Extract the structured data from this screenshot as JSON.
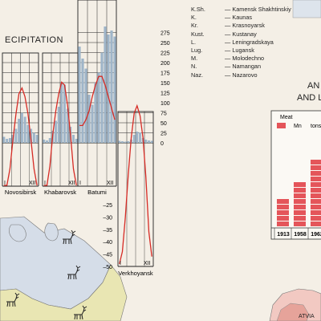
{
  "precip_title": "ECIPITATION",
  "scale_ticks": [
    "275",
    "250",
    "225",
    "200",
    "175",
    "150",
    "125",
    "100",
    "75",
    "50",
    "25",
    "0"
  ],
  "neg_ticks": [
    "–25",
    "–30",
    "–35",
    "–40",
    "–45",
    "–50"
  ],
  "months": {
    "start": "I",
    "end": "XII"
  },
  "stations": [
    {
      "name": "Novosibirsk",
      "start": "I",
      "end": "XII",
      "precip": [
        15,
        10,
        12,
        20,
        35,
        60,
        75,
        65,
        45,
        35,
        25,
        20
      ]
    },
    {
      "name": "Khabarovsk",
      "start": "I",
      "end": "XII",
      "precip": [
        8,
        6,
        12,
        30,
        55,
        90,
        150,
        145,
        85,
        40,
        20,
        10
      ]
    },
    {
      "name": "Batumi",
      "start": "I",
      "end": "XII",
      "precip": [
        240,
        210,
        185,
        120,
        95,
        150,
        175,
        225,
        290,
        270,
        280,
        265
      ]
    },
    {
      "name": "Verkhoyansk",
      "start": "I",
      "end": "XII",
      "precip": [
        5,
        4,
        3,
        4,
        8,
        20,
        28,
        26,
        12,
        8,
        6,
        5
      ]
    }
  ],
  "abbreviations": [
    {
      "abbr": "K.Sh.",
      "name": "Kamensk Shakhtinskiy"
    },
    {
      "abbr": "K.",
      "name": "Kaunas"
    },
    {
      "abbr": "Kr.",
      "name": "Krasnoyarsk"
    },
    {
      "abbr": "Kust.",
      "name": "Kustanay"
    },
    {
      "abbr": "L.",
      "name": "Leningradskaya"
    },
    {
      "abbr": "Lug.",
      "name": "Lugansk"
    },
    {
      "abbr": "M.",
      "name": "Molodechno"
    },
    {
      "abbr": "N.",
      "name": "Namangan"
    },
    {
      "abbr": "Naz.",
      "name": "Nazarovo"
    }
  ],
  "section2_title_1": "AN",
  "section2_title_2": "AND L",
  "meat": {
    "title": "Meat",
    "unit": "Mn",
    "unit2": "tons",
    "years": [
      "1913",
      "1958",
      "1962"
    ],
    "blocks": [
      5,
      8,
      12
    ]
  },
  "latvia": "ATVIA",
  "colors": {
    "bars": "#9fb5c9",
    "curve": "#d62b25",
    "grid": "#222",
    "land_green": "#e9e6b3",
    "land_blue": "#d5dde8",
    "meat": "#e4555a"
  }
}
